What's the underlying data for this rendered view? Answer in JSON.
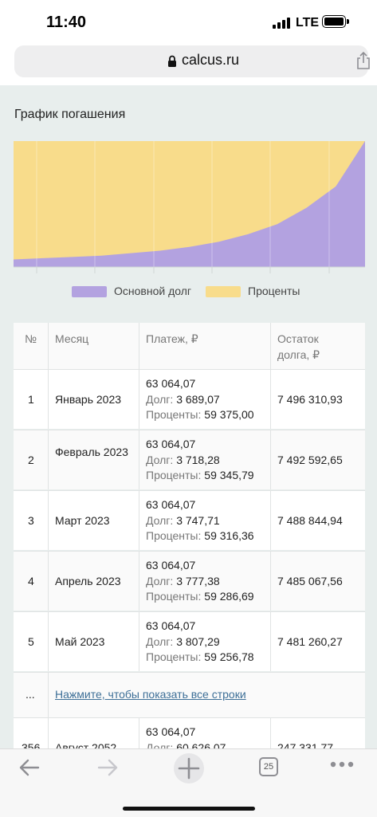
{
  "status": {
    "time": "11:40",
    "network": "LTE"
  },
  "browser": {
    "url": "calcus.ru",
    "tabs_count": "25"
  },
  "chart": {
    "title": "График погашения",
    "legend": [
      {
        "label": "Основной долг",
        "color": "#b3a2e0"
      },
      {
        "label": "Проценты",
        "color": "#f8dc8b"
      }
    ]
  },
  "chart_data": {
    "type": "area",
    "title": "График погашения",
    "x_range": [
      1,
      360
    ],
    "ylim": [
      0,
      100
    ],
    "series": [
      {
        "name": "Основной долг",
        "values": [
          6,
          7,
          8,
          9,
          11,
          13,
          16,
          20,
          26,
          34,
          47,
          64,
          100
        ]
      },
      {
        "name": "Проценты",
        "values": [
          94,
          93,
          92,
          91,
          89,
          87,
          84,
          80,
          74,
          66,
          53,
          36,
          0
        ]
      }
    ],
    "stacked": true,
    "grid": true,
    "legend_position": "bottom"
  },
  "table": {
    "headers": {
      "num": "№",
      "month": "Месяц",
      "payment": "Платеж, ₽",
      "balance_line1": "Остаток",
      "balance_line2": "долга, ₽"
    },
    "debt_prefix": "Долг:",
    "interest_prefix": "Проценты:",
    "rows": [
      {
        "num": "1",
        "month": "Январь 2023",
        "payment": "63 064,07",
        "debt": "3 689,07",
        "interest": "59 375,00",
        "balance": "7 496 310,93"
      },
      {
        "num": "2",
        "month": "Февраль 2023",
        "payment": "63 064,07",
        "debt": "3 718,28",
        "interest": "59 345,79",
        "balance": "7 492 592,65"
      },
      {
        "num": "3",
        "month": "Март 2023",
        "payment": "63 064,07",
        "debt": "3 747,71",
        "interest": "59 316,36",
        "balance": "7 488 844,94"
      },
      {
        "num": "4",
        "month": "Апрель 2023",
        "payment": "63 064,07",
        "debt": "3 777,38",
        "interest": "59 286,69",
        "balance": "7 485 067,56"
      },
      {
        "num": "5",
        "month": "Май 2023",
        "payment": "63 064,07",
        "debt": "3 807,29",
        "interest": "59 256,78",
        "balance": "7 481 260,27"
      }
    ],
    "ellipsis": "...",
    "show_all_link": "Нажмите, чтобы показать все строки",
    "last_row": {
      "num": "356",
      "month": "Август 2052",
      "payment": "63 064,07",
      "debt": "60 626,07",
      "balance": "247 331,77"
    }
  }
}
